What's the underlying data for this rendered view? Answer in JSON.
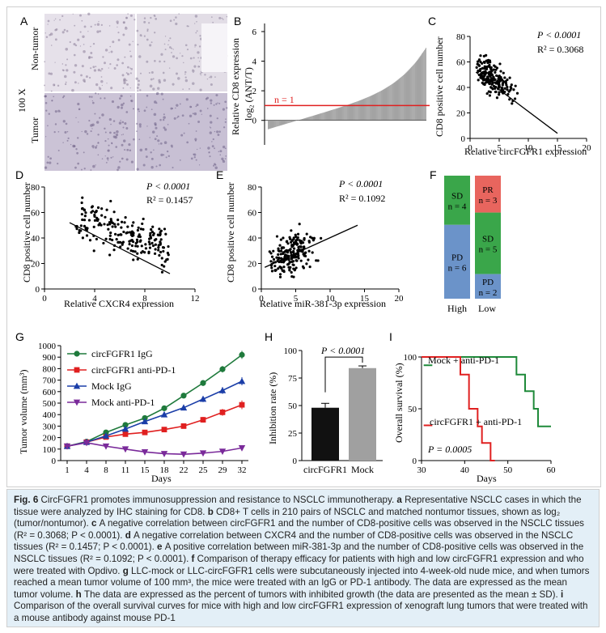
{
  "panels": {
    "A": {
      "letter": "A",
      "row_labels": [
        "Non-tumor",
        "Tumor"
      ],
      "mag": "100 X"
    },
    "B": {
      "letter": "B",
      "ylabel_1": "Relative CD8 expression",
      "ylabel_2": "log₂ (ANT/T)",
      "yticks": [
        "0",
        "2",
        "4",
        "6"
      ],
      "annotation": "n = 1",
      "ylim": [
        -1,
        6
      ],
      "threshold": 1
    },
    "C": {
      "letter": "C",
      "ylabel": "CD8 positive cell number",
      "xlabel": "Relative circFGFR1 expression",
      "p": "P < 0.0001",
      "r2": "R² = 0.3068",
      "xticks": [
        "0",
        "5",
        "10",
        "15",
        "20"
      ],
      "yticks": [
        "0",
        "20",
        "40",
        "60",
        "80"
      ],
      "xlim": [
        0,
        20
      ],
      "ylim": [
        0,
        80
      ]
    },
    "D": {
      "letter": "D",
      "ylabel": "CD8 positive cell number",
      "xlabel": "Relative CXCR4 expression",
      "p": "P < 0.0001",
      "r2": "R² = 0.1457",
      "xticks": [
        "0",
        "4",
        "8",
        "12"
      ],
      "yticks": [
        "0",
        "20",
        "40",
        "60",
        "80"
      ],
      "xlim": [
        0,
        12
      ],
      "ylim": [
        0,
        80
      ]
    },
    "E": {
      "letter": "E",
      "ylabel": "CD8 positive cell number",
      "xlabel": "Relative miR-381-3p expression",
      "p": "P < 0.0001",
      "r2": "R² = 0.1092",
      "xticks": [
        "0",
        "5",
        "10",
        "15",
        "20"
      ],
      "yticks": [
        "0",
        "20",
        "40",
        "60",
        "80"
      ],
      "xlim": [
        0,
        20
      ],
      "ylim": [
        0,
        80
      ]
    },
    "F": {
      "letter": "F",
      "high": {
        "label": "High",
        "segments": [
          {
            "label1": "SD",
            "label2": "n = 4",
            "value": 4,
            "color": "#3aa64a"
          },
          {
            "label1": "PD",
            "label2": "n = 6",
            "value": 6,
            "color": "#6b93c9"
          }
        ]
      },
      "low": {
        "label": "Low",
        "segments": [
          {
            "label1": "PR",
            "label2": "n = 3",
            "value": 3,
            "color": "#e8655e"
          },
          {
            "label1": "SD",
            "label2": "n = 5",
            "value": 5,
            "color": "#3aa64a"
          },
          {
            "label1": "PD",
            "label2": "n = 2",
            "value": 2,
            "color": "#6b93c9"
          }
        ]
      }
    },
    "G": {
      "letter": "G",
      "ylabel": "Tumor volume (mm³)",
      "xlabel": "Days",
      "yticks": [
        "0",
        "100",
        "200",
        "300",
        "400",
        "500",
        "600",
        "700",
        "800",
        "900",
        "1000"
      ],
      "xticks": [
        "1",
        "4",
        "8",
        "11",
        "15",
        "18",
        "22",
        "25",
        "29",
        "32"
      ]
    },
    "H": {
      "letter": "H",
      "ylabel": "Inhibition rate (%)",
      "yticks": [
        "0",
        "25",
        "50",
        "75",
        "100"
      ],
      "p": "P < 0.0001",
      "categories": [
        "circFGFR1",
        "Mock"
      ]
    },
    "I": {
      "letter": "I",
      "ylabel": "Overall survival (%)",
      "xlabel": "Days",
      "yticks": [
        "0",
        "50",
        "100"
      ],
      "xticks": [
        "30",
        "40",
        "50",
        "60"
      ],
      "mock_label": "Mock + anti-PD-1",
      "circ_label": "circFGFR1 + anti-PD-1",
      "p": "P = 0.0005"
    }
  },
  "chart_data": [
    {
      "panel": "G",
      "type": "line",
      "x": [
        1,
        4,
        8,
        11,
        15,
        18,
        22,
        25,
        29,
        32
      ],
      "series": [
        {
          "name": "circFGFR1 IgG",
          "color": "#1f7a3c",
          "marker": "circle",
          "values": [
            125,
            165,
            245,
            310,
            370,
            455,
            565,
            675,
            795,
            920
          ],
          "err": [
            8,
            10,
            14,
            16,
            18,
            20,
            22,
            26,
            28,
            35
          ]
        },
        {
          "name": "circFGFR1 anti-PD-1",
          "color": "#e02020",
          "marker": "square",
          "values": [
            125,
            160,
            205,
            230,
            245,
            270,
            300,
            355,
            420,
            485
          ],
          "err": [
            8,
            10,
            12,
            14,
            16,
            18,
            20,
            25,
            30,
            38
          ]
        },
        {
          "name": "Mock IgG",
          "color": "#1b3ea8",
          "marker": "triangle",
          "values": [
            125,
            160,
            215,
            275,
            340,
            400,
            460,
            535,
            610,
            690
          ],
          "err": [
            8,
            10,
            12,
            15,
            17,
            20,
            22,
            26,
            30,
            35
          ]
        },
        {
          "name": "Mock anti-PD-1",
          "color": "#7a2a9a",
          "marker": "triangle-down",
          "values": [
            125,
            155,
            125,
            100,
            75,
            60,
            55,
            65,
            80,
            110
          ],
          "err": [
            8,
            10,
            10,
            10,
            8,
            8,
            8,
            8,
            10,
            12
          ]
        }
      ],
      "ylim": [
        0,
        1000
      ]
    },
    {
      "panel": "H",
      "type": "bar",
      "categories": [
        "circFGFR1",
        "Mock"
      ],
      "values": [
        48,
        84
      ],
      "err": [
        4,
        2
      ],
      "colors": [
        "#111111",
        "#a0a0a0"
      ],
      "ylim": [
        0,
        100
      ]
    },
    {
      "panel": "I",
      "type": "line",
      "series": [
        {
          "name": "Mock + anti-PD-1",
          "color": "#1f8a3a",
          "points": [
            [
              30,
              100
            ],
            [
              52,
              100
            ],
            [
              52,
              83
            ],
            [
              54,
              83
            ],
            [
              54,
              67
            ],
            [
              56,
              67
            ],
            [
              56,
              50
            ],
            [
              57,
              50
            ],
            [
              57,
              33
            ],
            [
              60,
              33
            ]
          ]
        },
        {
          "name": "circFGFR1 + anti-PD-1",
          "color": "#e02020",
          "points": [
            [
              30,
              100
            ],
            [
              39,
              100
            ],
            [
              39,
              83
            ],
            [
              41,
              83
            ],
            [
              41,
              50
            ],
            [
              43,
              50
            ],
            [
              43,
              33
            ],
            [
              44,
              33
            ],
            [
              44,
              17
            ],
            [
              46,
              17
            ],
            [
              46,
              0
            ],
            [
              47,
              0
            ]
          ]
        }
      ],
      "xlim": [
        30,
        60
      ],
      "ylim": [
        0,
        100
      ]
    },
    {
      "panel": "B",
      "type": "bar",
      "n": 210,
      "ylim": [
        -1,
        6
      ],
      "note": "values sorted ascending"
    }
  ],
  "caption": {
    "fig_label": "Fig. 6",
    "title": "CircFGFR1 promotes immunosuppression and resistance to NSCLC immunotherapy.",
    "parts": [
      {
        "k": "a",
        "t": "Representative NSCLC cases in which the tissue were analyzed by IHC staining for CD8."
      },
      {
        "k": "b",
        "t": "CD8+ T cells in 210 pairs of NSCLC and matched nontumor tissues, shown as log₂ (tumor/nontumor)."
      },
      {
        "k": "c",
        "t": "A negative correlation between circFGFR1 and the number of CD8-positive cells was observed in the NSCLC tissues (R² = 0.3068; P < 0.0001)."
      },
      {
        "k": "d",
        "t": "A negative correlation between CXCR4 and the number of CD8-positive cells was observed in the NSCLC tissues (R² = 0.1457; P < 0.0001)."
      },
      {
        "k": "e",
        "t": "A positive correlation between miR-381-3p and the number of CD8-positive cells was observed in the NSCLC tissues (R² = 0.1092; P < 0.0001)."
      },
      {
        "k": "f",
        "t": "Comparison of therapy efficacy for patients with high and low circFGFR1 expression and who were treated with Opdivo."
      },
      {
        "k": "g",
        "t": "LLC-mock or LLC-circFGFR1 cells were subcutaneously injected into 4-week-old nude mice, and when tumors reached a mean tumor volume of 100 mm³, the mice were treated with an IgG or PD-1 antibody. The data are expressed as the mean tumor volume."
      },
      {
        "k": "h",
        "t": "The data are expressed as the percent of tumors with inhibited growth (the data are presented as the mean ± SD)."
      },
      {
        "k": "i",
        "t": "Comparison of the overall survival curves for mice with high and low circFGFR1 expression of xenograft lung tumors that were treated with a mouse antibody against mouse PD-1"
      }
    ]
  }
}
